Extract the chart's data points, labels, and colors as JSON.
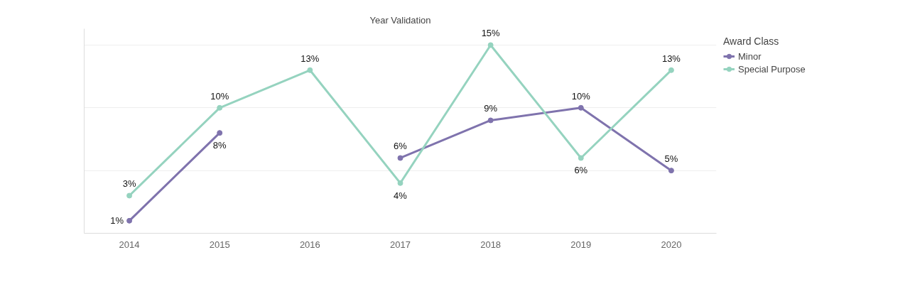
{
  "chart_data": {
    "type": "line",
    "title": "Year Validation",
    "legend_title": "Award Class",
    "categories": [
      "2014",
      "2015",
      "2016",
      "2017",
      "2018",
      "2019",
      "2020"
    ],
    "series": [
      {
        "name": "Minor",
        "color": "#7f73ad",
        "values": [
          1,
          8,
          null,
          6,
          9,
          10,
          5
        ],
        "value_labels": [
          "1%",
          "8%",
          null,
          "6%",
          "9%",
          "10%",
          "5%"
        ]
      },
      {
        "name": "Special Purpose",
        "color": "#95d3bf",
        "values": [
          3,
          10,
          13,
          4,
          15,
          6,
          13
        ],
        "value_labels": [
          "3%",
          "10%",
          "13%",
          "4%",
          "15%",
          "6%",
          "13%"
        ]
      }
    ],
    "ylim": [
      0,
      16.3
    ],
    "yticks": [
      {
        "value": 0,
        "label": null
      },
      {
        "value": 5,
        "label": null
      },
      {
        "value": 10,
        "label": null
      },
      {
        "value": 15,
        "label": null
      }
    ],
    "grid": "y",
    "legend": "top right",
    "marker": "circle",
    "line_style": "solid",
    "tick_labels": "x"
  }
}
